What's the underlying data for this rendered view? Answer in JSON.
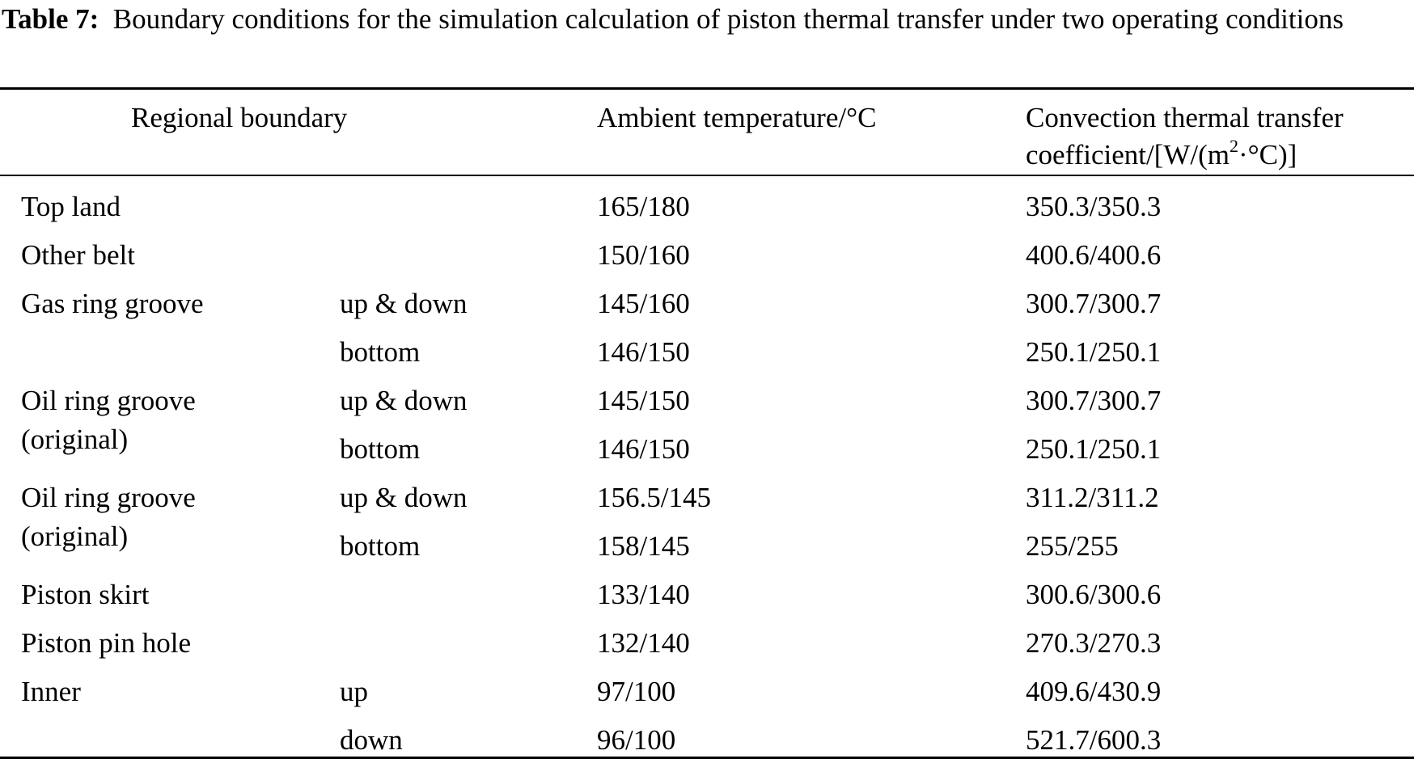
{
  "caption": {
    "label": "Table 7:",
    "text": "Boundary conditions for the simulation calculation of piston thermal transfer under two operating conditions"
  },
  "headers": {
    "regional_boundary": "Regional boundary",
    "ambient_temperature": "Ambient temperature/°C",
    "convection_line1": "Convection thermal transfer",
    "convection_line2_pre": "coefficient/[W/(m",
    "convection_line2_sup": "2",
    "convection_line2_post": "·°C)]"
  },
  "rows": [
    {
      "region": "Top land",
      "sub": "",
      "temp": "165/180",
      "coef": "350.3/350.3"
    },
    {
      "region": "Other belt",
      "sub": "",
      "temp": "150/160",
      "coef": "400.6/400.6"
    },
    {
      "region": "Gas ring groove",
      "sub": "up & down",
      "temp": "145/160",
      "coef": "300.7/300.7"
    },
    {
      "region": "",
      "sub": "bottom",
      "temp": "146/150",
      "coef": "250.1/250.1"
    },
    {
      "region": "Oil ring groove",
      "sub": "up & down",
      "temp": "145/150",
      "coef": "300.7/300.7"
    },
    {
      "region": "(original)",
      "sub": "bottom",
      "temp": "146/150",
      "coef": "250.1/250.1"
    },
    {
      "region": "Oil ring groove",
      "sub": "up & down",
      "temp": "156.5/145",
      "coef": "311.2/311.2"
    },
    {
      "region": "(original)",
      "sub": "bottom",
      "temp": "158/145",
      "coef": "255/255"
    },
    {
      "region": "Piston skirt",
      "sub": "",
      "temp": "133/140",
      "coef": "300.6/300.6"
    },
    {
      "region": "Piston pin hole",
      "sub": "",
      "temp": "132/140",
      "coef": "270.3/270.3"
    },
    {
      "region": "Inner",
      "sub": "up",
      "temp": "97/100",
      "coef": "409.6/430.9"
    },
    {
      "region": "",
      "sub": "down",
      "temp": "96/100",
      "coef": "521.7/600.3"
    }
  ]
}
